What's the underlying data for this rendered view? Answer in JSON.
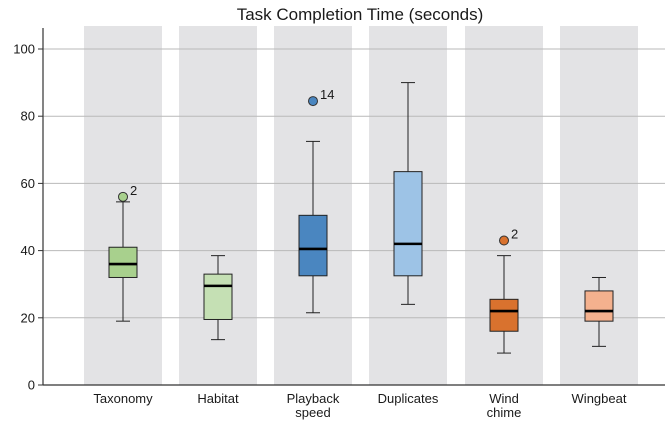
{
  "chart_data": {
    "type": "box",
    "title": "Task Completion Time (seconds)",
    "xlabel": "",
    "ylabel": "",
    "ylim": [
      0,
      100
    ],
    "yticks": [
      0,
      20,
      40,
      60,
      80,
      100
    ],
    "grid": "horizontal",
    "background_bands": "alternating light-grey bands behind each pair of boxes",
    "categories": [
      {
        "lines": [
          "Taxonomy"
        ]
      },
      {
        "lines": [
          "Habitat"
        ]
      },
      {
        "lines": [
          "Playback",
          "speed"
        ]
      },
      {
        "lines": [
          "Duplicates"
        ]
      },
      {
        "lines": [
          "Wind",
          "chime"
        ]
      },
      {
        "lines": [
          "Wingbeat"
        ]
      }
    ],
    "boxes": [
      {
        "whisker_low": 19,
        "q1": 32,
        "median": 36,
        "q3": 41,
        "whisker_high": 54.5,
        "color": "#a8d08d",
        "outliers": [
          {
            "value": 56,
            "label": "2"
          }
        ]
      },
      {
        "whisker_low": 13.5,
        "q1": 19.5,
        "median": 29.5,
        "q3": 33,
        "whisker_high": 38.5,
        "color": "#c5e0b4",
        "outliers": []
      },
      {
        "whisker_low": 21.5,
        "q1": 32.5,
        "median": 40.5,
        "q3": 50.5,
        "whisker_high": 72.5,
        "color": "#4a86c0",
        "outliers": [
          {
            "value": 84.5,
            "label": "14"
          }
        ]
      },
      {
        "whisker_low": 24,
        "q1": 32.5,
        "median": 42,
        "q3": 63.5,
        "whisker_high": 90,
        "color": "#9dc3e6",
        "outliers": []
      },
      {
        "whisker_low": 9.5,
        "q1": 16,
        "median": 22,
        "q3": 25.5,
        "whisker_high": 38.5,
        "color": "#d9722e",
        "outliers": [
          {
            "value": 43,
            "label": "2"
          }
        ]
      },
      {
        "whisker_low": 11.5,
        "q1": 19,
        "median": 22,
        "q3": 28,
        "whisker_high": 32,
        "color": "#f4b18e",
        "outliers": []
      }
    ]
  }
}
